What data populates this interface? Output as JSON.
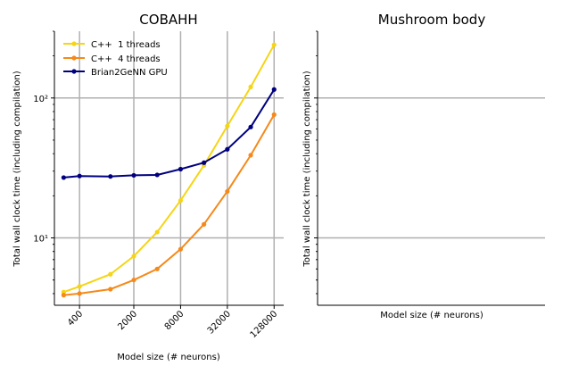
{
  "chart_data": [
    {
      "type": "line",
      "title": "COBAHH",
      "xlabel": "Model size (# neurons)",
      "ylabel": "Total wall clock time (including compilation)",
      "x_scale": "log",
      "y_scale": "log",
      "xlim": [
        190,
        170000
      ],
      "ylim": [
        3.3,
        300
      ],
      "x_ticks": [
        400,
        2000,
        8000,
        32000,
        128000
      ],
      "x_tick_labels": [
        "400",
        "2000",
        "8000",
        "32000",
        "128000"
      ],
      "y_ticks": [
        10,
        100
      ],
      "y_tick_labels": [
        "10¹",
        "10²"
      ],
      "grid": true,
      "legend": "top-left",
      "series": [
        {
          "name": "C++  1 threads",
          "color": "#f5d516",
          "x": [
            250,
            400,
            1000,
            2000,
            4000,
            8000,
            16000,
            32000,
            64000,
            128000
          ],
          "y": [
            4.1,
            4.5,
            5.5,
            7.4,
            11,
            18.5,
            33,
            63,
            120,
            240
          ]
        },
        {
          "name": "C++  4 threads",
          "color": "#f5891a",
          "x": [
            250,
            400,
            1000,
            2000,
            4000,
            8000,
            16000,
            32000,
            64000,
            128000
          ],
          "y": [
            3.9,
            4.0,
            4.3,
            5.0,
            6.0,
            8.3,
            12.5,
            21.5,
            39,
            76
          ]
        },
        {
          "name": "Brian2GeNN GPU",
          "color": "#00007f",
          "x": [
            250,
            400,
            1000,
            2000,
            4000,
            8000,
            16000,
            32000,
            64000,
            128000
          ],
          "y": [
            27,
            27.7,
            27.5,
            28,
            28.2,
            31,
            34.5,
            43,
            62,
            115
          ]
        }
      ]
    },
    {
      "type": "line",
      "title": "Mushroom body",
      "xlabel": "Model size (# neurons)",
      "ylabel": "Total wall clock time (including compilation)",
      "y_scale": "log",
      "ylim": [
        3.3,
        300
      ],
      "y_ticks": [
        10,
        100
      ],
      "grid": true,
      "series": []
    }
  ]
}
